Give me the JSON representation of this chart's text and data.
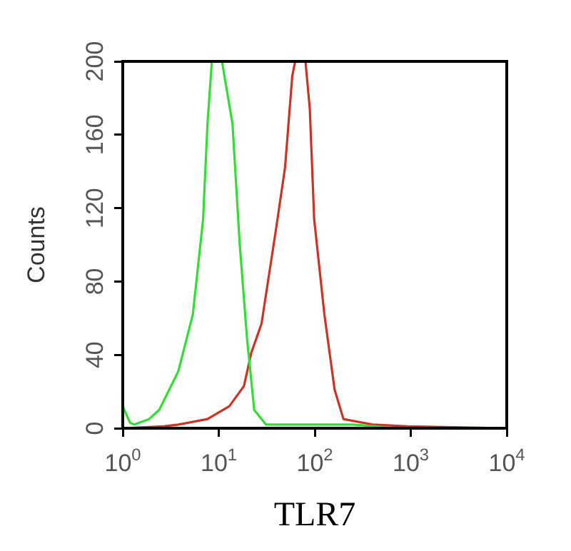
{
  "chart_data": {
    "type": "line",
    "xlabel": "TLR7",
    "ylabel": "Counts",
    "log": "x",
    "xlim": [
      1,
      10000
    ],
    "ylim": [
      0,
      200
    ],
    "xticks": [
      {
        "value": 1,
        "label": "10$^{0}$"
      },
      {
        "value": 10,
        "label": "10$^{1}$"
      },
      {
        "value": 100,
        "label": "10$^{2}$"
      },
      {
        "value": 1000,
        "label": "10$^{3}$"
      },
      {
        "value": 10000,
        "label": "10$^{4}$"
      }
    ],
    "yticks": [
      0,
      40,
      80,
      120,
      160,
      200
    ],
    "grid": false,
    "legend": false,
    "marker": "none",
    "line_style": "solid",
    "series": [
      {
        "color": "#33dd33",
        "x": [
          1,
          1.19,
          1.32,
          1.88,
          2.4,
          3.79,
          5.37,
          6.87,
          7.63,
          8.48,
          10.8,
          13.9,
          16.5,
          19.7,
          23.4,
          31,
          250,
          730
        ],
        "values": [
          12,
          3,
          2,
          5,
          10,
          31,
          62,
          114,
          166,
          200,
          200,
          166,
          101,
          49,
          10,
          2,
          2,
          0
        ]
      },
      {
        "color": "#cc3322",
        "x": [
          1,
          2.67,
          3.79,
          7.63,
          12.9,
          18.3,
          21.8,
          27.9,
          39.6,
          49,
          58.3,
          62.5,
          80,
          88.8,
          98.6,
          126,
          161,
          199,
          401,
          929,
          10000
        ],
        "values": [
          0,
          1,
          2,
          5,
          12,
          23,
          41,
          57,
          109,
          142,
          192,
          200,
          200,
          174,
          114,
          62,
          21,
          5,
          2,
          1,
          0
        ]
      }
    ]
  }
}
